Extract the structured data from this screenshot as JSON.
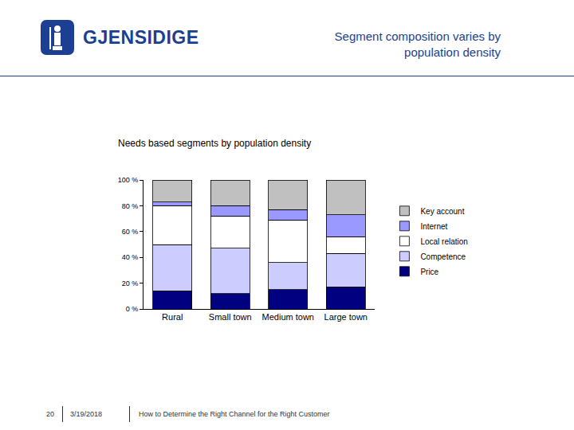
{
  "slide": {
    "logo": "GJENSIDIGE",
    "title": [
      "Segment composition varies by",
      "population density"
    ],
    "footer": {
      "page": "20",
      "date": "3/19/2018",
      "text": "How to Determine the Right Channel for the Right Customer"
    }
  },
  "chart_data": {
    "type": "bar",
    "stacked": true,
    "title": "Needs based segments by population density",
    "categories": [
      "Rural",
      "Small town",
      "Medium town",
      "Large town"
    ],
    "series": [
      {
        "name": "Price",
        "color": "#000080",
        "values": [
          14,
          12,
          15,
          17
        ]
      },
      {
        "name": "Competence",
        "color": "#ccccff",
        "values": [
          36,
          35,
          21,
          26
        ]
      },
      {
        "name": "Local relation",
        "color": "#ffffff",
        "values": [
          30,
          25,
          33,
          13
        ]
      },
      {
        "name": "Internet",
        "color": "#9999ff",
        "values": [
          3,
          8,
          8,
          17
        ]
      },
      {
        "name": "Key account",
        "color": "#c0c0c0",
        "values": [
          17,
          20,
          23,
          27
        ]
      }
    ],
    "ylim": [
      0,
      100
    ],
    "yticks": [
      {
        "value": 0,
        "label": "0 %"
      },
      {
        "value": 20,
        "label": "20 %"
      },
      {
        "value": 40,
        "label": "40 %"
      },
      {
        "value": 60,
        "label": "60 %"
      },
      {
        "value": 80,
        "label": "80 %"
      },
      {
        "value": 100,
        "label": "100 %"
      }
    ],
    "grid": false,
    "legend": "right"
  }
}
